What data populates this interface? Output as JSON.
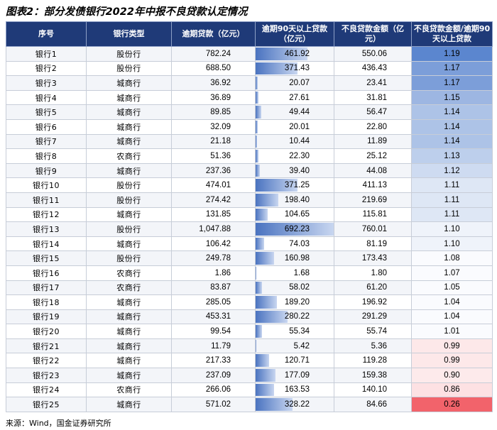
{
  "title": "图表2：部分发债银行2022年中报不良贷款认定情况",
  "headers": [
    "序号",
    "银行类型",
    "逾期贷款（亿元）",
    "逾期90天以上贷款（亿元）",
    "不良贷款金额（亿元）",
    "不良贷款金额/逾期90天以上贷款"
  ],
  "rows": [
    {
      "bank": "银行1",
      "type": "股份行",
      "overdue": "782.24",
      "overdue90": "461.92",
      "npl": "550.06",
      "ratio": "1.19"
    },
    {
      "bank": "银行2",
      "type": "股份行",
      "overdue": "688.50",
      "overdue90": "371.43",
      "npl": "436.43",
      "ratio": "1.17"
    },
    {
      "bank": "银行3",
      "type": "城商行",
      "overdue": "36.92",
      "overdue90": "20.07",
      "npl": "23.41",
      "ratio": "1.17"
    },
    {
      "bank": "银行4",
      "type": "城商行",
      "overdue": "36.89",
      "overdue90": "27.61",
      "npl": "31.81",
      "ratio": "1.15"
    },
    {
      "bank": "银行5",
      "type": "城商行",
      "overdue": "89.85",
      "overdue90": "49.44",
      "npl": "56.47",
      "ratio": "1.14"
    },
    {
      "bank": "银行6",
      "type": "城商行",
      "overdue": "32.09",
      "overdue90": "20.01",
      "npl": "22.80",
      "ratio": "1.14"
    },
    {
      "bank": "银行7",
      "type": "城商行",
      "overdue": "21.18",
      "overdue90": "10.44",
      "npl": "11.89",
      "ratio": "1.14"
    },
    {
      "bank": "银行8",
      "type": "农商行",
      "overdue": "51.36",
      "overdue90": "22.30",
      "npl": "25.12",
      "ratio": "1.13"
    },
    {
      "bank": "银行9",
      "type": "城商行",
      "overdue": "237.36",
      "overdue90": "39.40",
      "npl": "44.08",
      "ratio": "1.12"
    },
    {
      "bank": "银行10",
      "type": "股份行",
      "overdue": "474.01",
      "overdue90": "371.25",
      "npl": "411.13",
      "ratio": "1.11"
    },
    {
      "bank": "银行11",
      "type": "股份行",
      "overdue": "274.42",
      "overdue90": "198.40",
      "npl": "219.69",
      "ratio": "1.11"
    },
    {
      "bank": "银行12",
      "type": "城商行",
      "overdue": "131.85",
      "overdue90": "104.65",
      "npl": "115.81",
      "ratio": "1.11"
    },
    {
      "bank": "银行13",
      "type": "股份行",
      "overdue": "1,047.88",
      "overdue90": "692.23",
      "npl": "760.01",
      "ratio": "1.10"
    },
    {
      "bank": "银行14",
      "type": "城商行",
      "overdue": "106.42",
      "overdue90": "74.03",
      "npl": "81.19",
      "ratio": "1.10"
    },
    {
      "bank": "银行15",
      "type": "股份行",
      "overdue": "249.78",
      "overdue90": "160.98",
      "npl": "173.43",
      "ratio": "1.08"
    },
    {
      "bank": "银行16",
      "type": "农商行",
      "overdue": "1.86",
      "overdue90": "1.68",
      "npl": "1.80",
      "ratio": "1.07"
    },
    {
      "bank": "银行17",
      "type": "农商行",
      "overdue": "83.87",
      "overdue90": "58.02",
      "npl": "61.20",
      "ratio": "1.05"
    },
    {
      "bank": "银行18",
      "type": "城商行",
      "overdue": "285.05",
      "overdue90": "189.20",
      "npl": "196.92",
      "ratio": "1.04"
    },
    {
      "bank": "银行19",
      "type": "城商行",
      "overdue": "453.31",
      "overdue90": "280.22",
      "npl": "291.29",
      "ratio": "1.04"
    },
    {
      "bank": "银行20",
      "type": "城商行",
      "overdue": "99.54",
      "overdue90": "55.34",
      "npl": "55.74",
      "ratio": "1.01"
    },
    {
      "bank": "银行21",
      "type": "城商行",
      "overdue": "11.79",
      "overdue90": "5.42",
      "npl": "5.36",
      "ratio": "0.99"
    },
    {
      "bank": "银行22",
      "type": "城商行",
      "overdue": "217.33",
      "overdue90": "120.71",
      "npl": "119.28",
      "ratio": "0.99"
    },
    {
      "bank": "银行23",
      "type": "城商行",
      "overdue": "237.09",
      "overdue90": "177.09",
      "npl": "159.38",
      "ratio": "0.90"
    },
    {
      "bank": "银行24",
      "type": "农商行",
      "overdue": "266.06",
      "overdue90": "163.53",
      "npl": "140.10",
      "ratio": "0.86"
    },
    {
      "bank": "银行25",
      "type": "城商行",
      "overdue": "571.02",
      "overdue90": "328.22",
      "npl": "84.66",
      "ratio": "0.26"
    }
  ],
  "source": "来源：Wind，国金证券研究所",
  "colors": {
    "header": "#1f3a78",
    "bar": "#4a73c0",
    "scale_high": "#5b86cf",
    "scale_mid": "#ffffff",
    "scale_low": "#f2636b"
  }
}
